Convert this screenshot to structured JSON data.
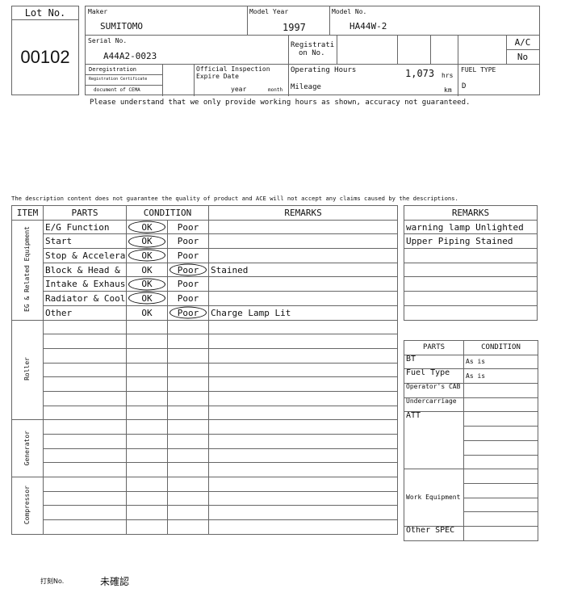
{
  "header": {
    "lot_label": "Lot No.",
    "lot_no": "00102",
    "maker_label": "Maker",
    "maker": "SUMITOMO",
    "model_year_label": "Model Year",
    "model_year": "1997",
    "model_no_label": "Model No.",
    "model_no": "HA44W-2",
    "serial_label": "Serial No.",
    "serial": "A44A2-0023",
    "registration_label_1": "Registrati",
    "registration_label_2": "on No.",
    "ac_label": "A/C",
    "ac_value": "No",
    "deregistration_label": "Deregistration",
    "registration_cert_label": "Registration Certificate",
    "cema_label": "document of CEMA",
    "inspection_label_1": "Official Inspection",
    "inspection_label_2": "Expire Date",
    "year_label": "year",
    "month_label": "month",
    "operating_hours_label": "Operating Hours",
    "operating_hours": "1,073",
    "hrs_unit": "hrs",
    "mileage_label": "Mileage",
    "km_unit": "km",
    "fuel_type_label": "FUEL TYPE",
    "fuel_type": "D",
    "hours_note": "Please understand that we only provide working hours as shown, accuracy not guaranteed."
  },
  "disclaimer": "The description content does not guarantee the quality of product and ACE will not accept any claims caused by the descriptions.",
  "main_table": {
    "headers": {
      "item": "ITEM",
      "parts": "PARTS",
      "condition": "CONDITION",
      "remarks": "REMARKS"
    },
    "ok_label": "OK",
    "poor_label": "Poor",
    "groups": [
      {
        "item": "EG & Related Equipment",
        "rows": [
          {
            "part": "E/G Function",
            "selected": "OK",
            "remarks": ""
          },
          {
            "part": "Start",
            "selected": "OK",
            "remarks": ""
          },
          {
            "part": "Stop & Accelerator",
            "selected": "OK",
            "remarks": ""
          },
          {
            "part": "Block & Head & Oil Pan",
            "selected": "Poor",
            "remarks": "Stained",
            "small": true
          },
          {
            "part": "Intake & Exhaust",
            "selected": "OK",
            "remarks": ""
          },
          {
            "part": "Radiator & Cooling",
            "selected": "OK",
            "remarks": ""
          },
          {
            "part": "Other",
            "selected": "Poor",
            "remarks": "Charge Lamp Lit"
          }
        ]
      },
      {
        "item": "Roller",
        "blank_rows": 7
      },
      {
        "item": "Generator",
        "blank_rows": 4
      },
      {
        "item": "Compressor",
        "blank_rows": 4
      }
    ]
  },
  "side_remarks": {
    "header": "REMARKS",
    "rows": [
      "warning lamp Unlighted",
      "Upper Piping Stained",
      "",
      "",
      "",
      "",
      ""
    ]
  },
  "side_parts": {
    "headers": {
      "parts": "PARTS",
      "condition": "CONDITION"
    },
    "rows": [
      {
        "part": "BT",
        "conditions": [
          "As is"
        ]
      },
      {
        "part": "Fuel Type",
        "conditions": [
          "As is"
        ]
      },
      {
        "part": "Operator's CAB",
        "conditions": [
          ""
        ],
        "small": true
      },
      {
        "part": "Undercarriage",
        "conditions": [
          ""
        ],
        "small": true
      },
      {
        "part": "ATT",
        "conditions": [
          "",
          "",
          "",
          ""
        ]
      },
      {
        "part": "Work Equipment",
        "conditions": [
          "",
          "",
          "",
          ""
        ],
        "small": true,
        "middle": true
      },
      {
        "part": "Other SPEC",
        "conditions": [
          ""
        ]
      }
    ]
  },
  "footer": {
    "stamp_label": "打刻No.",
    "stamp_value": "未確認"
  }
}
